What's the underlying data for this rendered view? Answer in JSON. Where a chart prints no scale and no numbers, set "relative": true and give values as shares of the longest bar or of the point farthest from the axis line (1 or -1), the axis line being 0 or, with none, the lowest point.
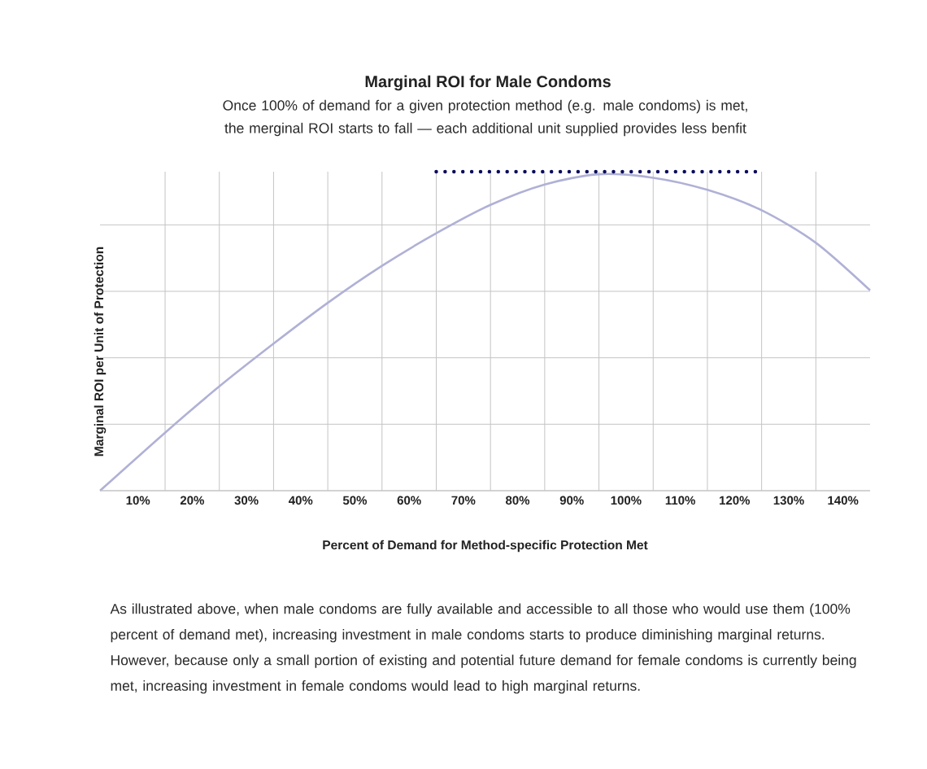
{
  "chart_data": {
    "type": "line",
    "title": "Marginal ROI for Male Condoms",
    "subtitle": "Once 100% of demand for a given protection method (e.g. male condoms) is met, the merginal ROI starts to fall — each additional unit supplied provides less benfit",
    "xlabel": "Percent of Demand for Method-specific Protection Met",
    "ylabel": "Marginal ROI per Unit of Protection",
    "relative": true,
    "grid": true,
    "xlim": [
      3,
      145
    ],
    "xticks": [
      {
        "value": 10,
        "label": "10%"
      },
      {
        "value": 15,
        "label": null
      },
      {
        "value": 20,
        "label": "20%"
      },
      {
        "value": 25,
        "label": null
      },
      {
        "value": 30,
        "label": "30%"
      },
      {
        "value": 35,
        "label": null
      },
      {
        "value": 40,
        "label": "40%"
      },
      {
        "value": 45,
        "label": null
      },
      {
        "value": 50,
        "label": "50%"
      },
      {
        "value": 55,
        "label": null
      },
      {
        "value": 60,
        "label": "60%"
      },
      {
        "value": 65,
        "label": null
      },
      {
        "value": 70,
        "label": "70%"
      },
      {
        "value": 75,
        "label": null
      },
      {
        "value": 80,
        "label": "80%"
      },
      {
        "value": 85,
        "label": null
      },
      {
        "value": 90,
        "label": "90%"
      },
      {
        "value": 95,
        "label": null
      },
      {
        "value": 100,
        "label": "100%"
      },
      {
        "value": 105,
        "label": null
      },
      {
        "value": 110,
        "label": "110%"
      },
      {
        "value": 115,
        "label": null
      },
      {
        "value": 120,
        "label": "120%"
      },
      {
        "value": 125,
        "label": null
      },
      {
        "value": 130,
        "label": "130%"
      },
      {
        "value": 135,
        "label": null
      },
      {
        "value": 140,
        "label": "140%"
      }
    ],
    "tick_labels": "x",
    "series": [
      {
        "color": "#b0b1d6",
        "x": [
          3,
          15,
          25,
          35,
          45,
          55,
          65,
          75,
          85,
          95,
          105,
          115,
          125,
          135,
          145
        ],
        "values": [
          0,
          0.182,
          0.327,
          0.461,
          0.589,
          0.705,
          0.807,
          0.896,
          0.96,
          0.992,
          0.981,
          0.943,
          0.879,
          0.777,
          0.628
        ]
      },
      {
        "color": "#0b0b5c",
        "line_style": "dotted",
        "x": [
          65,
          125
        ],
        "values": [
          1,
          1
        ]
      }
    ],
    "annotations": [
      "As illustrated above, when male condoms are fully available and accessible to all those who would use them (100% percent of demand met), increasing investment in male condoms starts to produce diminishing marginal returns. However, because only a small portion of existing and potential future demand for female condoms is currently being met, increasing investment in female condoms would lead to high marginal returns."
    ]
  }
}
